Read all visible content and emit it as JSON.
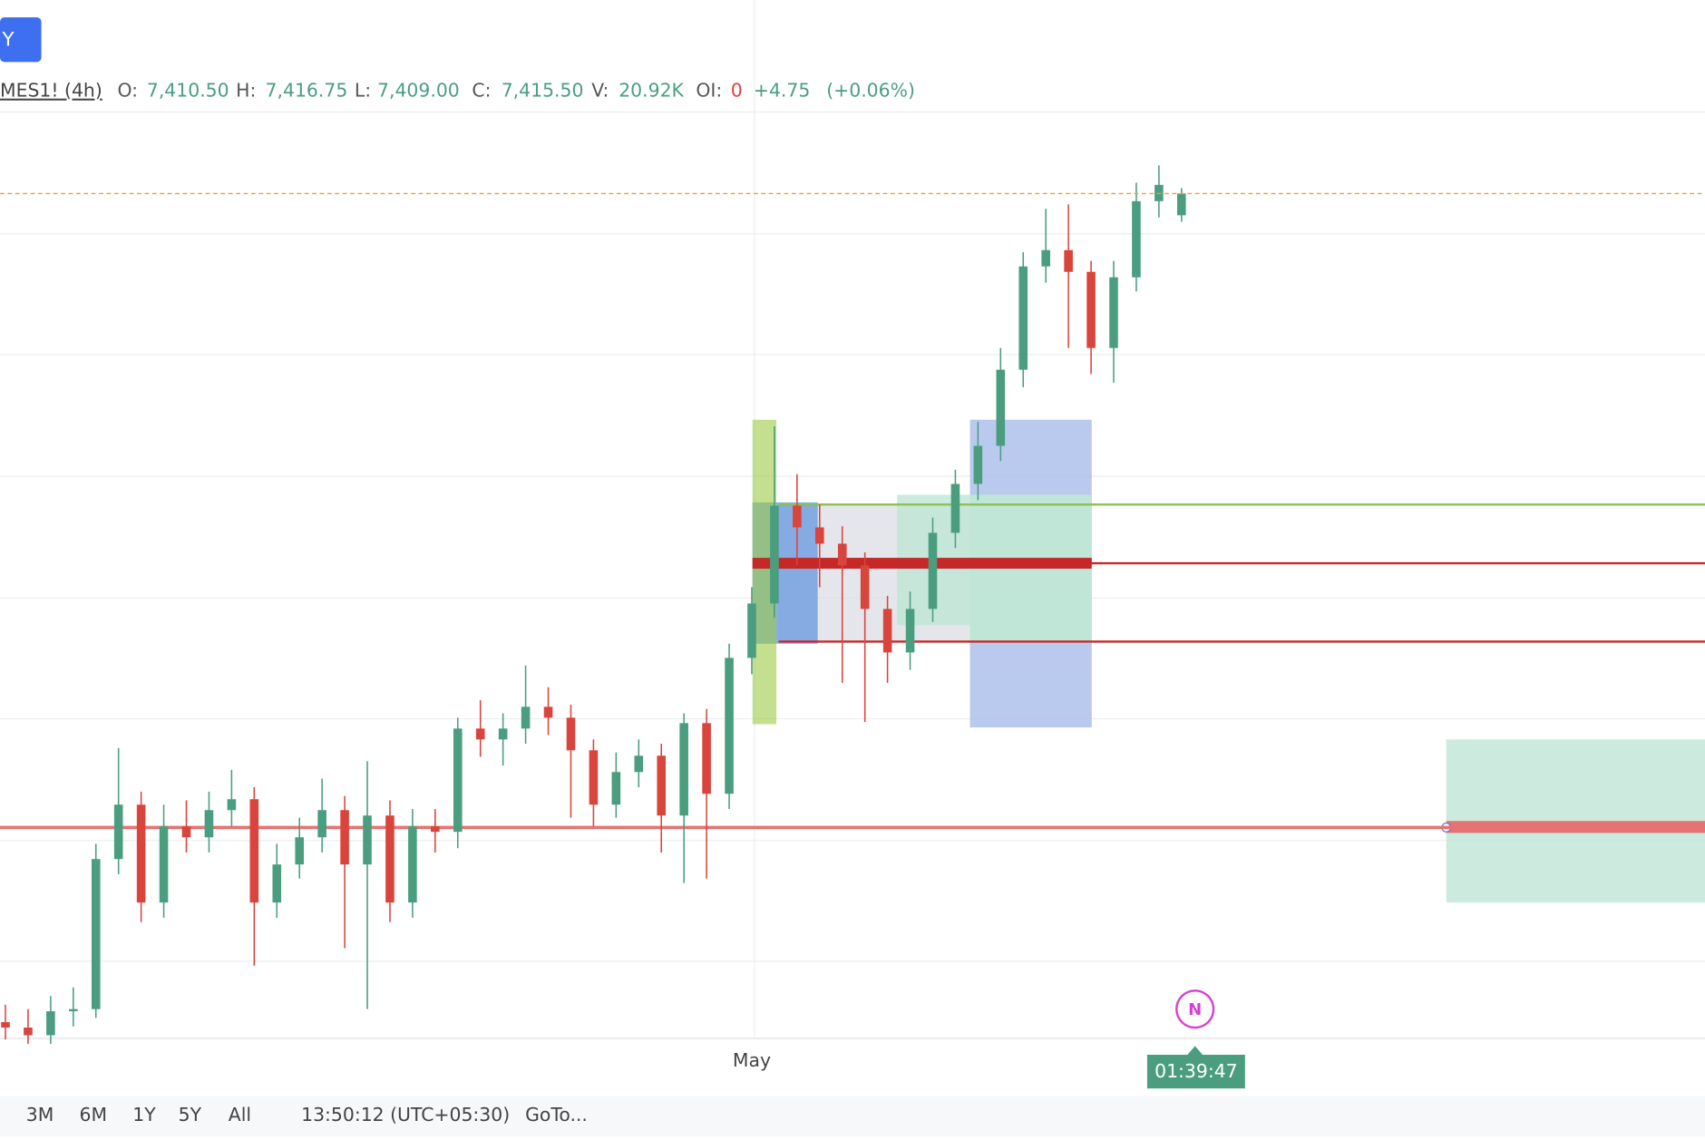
{
  "header": {
    "button": "Y",
    "symbol": "MES1! (4h)",
    "fields": [
      {
        "name": "O:",
        "value": 7410.5,
        "label": "7,410.50"
      },
      {
        "name": "H:",
        "value": 7416.75,
        "label": "7,416.75"
      },
      {
        "name": "L:",
        "value": 7409,
        "label": "7,409.00"
      },
      {
        "name": "C:",
        "value": 7415.5,
        "label": "7,415.50"
      },
      {
        "name": "V:",
        "value": 20920,
        "label": "20.92K"
      },
      {
        "name": "OI:",
        "value": 0,
        "label": "0"
      }
    ],
    "change": {
      "value": 4.75,
      "label": "+4.75"
    },
    "change_pct": {
      "value": 0.06,
      "label": "(+0.06%)"
    }
  },
  "chart_data": {
    "type": "candlestick",
    "ylim": [
      7220,
      7460
    ],
    "up_color": "#4a9e7f",
    "down_color": "#d9453d",
    "categories": [
      null,
      null,
      null,
      null,
      null,
      null,
      null,
      null,
      null,
      null,
      null,
      null,
      null,
      null,
      null,
      null,
      null,
      null,
      null,
      null,
      null,
      null,
      null,
      null,
      null,
      null,
      null,
      null,
      null,
      null,
      null,
      null,
      null,
      "May",
      null,
      null,
      null,
      null,
      null,
      null,
      null,
      null,
      null,
      null,
      null,
      null,
      null,
      null,
      null,
      null,
      null,
      null,
      null
    ],
    "candles": [
      [
        7225,
        7229,
        7221,
        7223.75
      ],
      [
        7223.75,
        7228,
        7220,
        7222
      ],
      [
        7222,
        7231,
        7220,
        7227.5
      ],
      [
        7227.5,
        7233,
        7224,
        7228
      ],
      [
        7228,
        7266,
        7226,
        7262.5
      ],
      [
        7262.5,
        7288,
        7259,
        7275
      ],
      [
        7275,
        7278,
        7248,
        7252.5
      ],
      [
        7252.5,
        7275,
        7249,
        7270
      ],
      [
        7270,
        7276,
        7264,
        7267.5
      ],
      [
        7267.5,
        7278,
        7264,
        7273.75
      ],
      [
        7273.75,
        7283,
        7270,
        7276.25
      ],
      [
        7276.25,
        7279,
        7238,
        7252.5
      ],
      [
        7252.5,
        7266,
        7249,
        7261.25
      ],
      [
        7261.25,
        7272,
        7258,
        7267.5
      ],
      [
        7267.5,
        7281,
        7264,
        7273.75
      ],
      [
        7273.75,
        7277,
        7242,
        7261.25
      ],
      [
        7261.25,
        7285,
        7228,
        7272.5
      ],
      [
        7272.5,
        7276,
        7248,
        7252.5
      ],
      [
        7252.5,
        7274,
        7249,
        7270
      ],
      [
        7270,
        7274,
        7264,
        7268.75
      ],
      [
        7268.75,
        7295,
        7265,
        7292.5
      ],
      [
        7292.5,
        7299,
        7286,
        7290
      ],
      [
        7290,
        7296,
        7284,
        7292.5
      ],
      [
        7292.5,
        7307,
        7289,
        7297.5
      ],
      [
        7297.5,
        7302,
        7291,
        7295
      ],
      [
        7295,
        7298,
        7272,
        7287.5
      ],
      [
        7287.5,
        7290,
        7270,
        7275
      ],
      [
        7275,
        7287,
        7272,
        7282.5
      ],
      [
        7282.5,
        7290,
        7279,
        7286.25
      ],
      [
        7286.25,
        7289,
        7264,
        7272.5
      ],
      [
        7272.5,
        7296,
        7257,
        7293.75
      ],
      [
        7293.75,
        7297,
        7258,
        7277.5
      ],
      [
        7277.5,
        7312,
        7274,
        7308.75
      ],
      [
        7308.75,
        7325,
        7305,
        7321.25
      ],
      [
        7321.25,
        7362,
        7318,
        7343.75
      ],
      [
        7343.75,
        7351,
        7330,
        7338.75
      ],
      [
        7338.75,
        7344,
        7325,
        7335
      ],
      [
        7335,
        7339,
        7303,
        7330
      ],
      [
        7330,
        7333,
        7294,
        7320
      ],
      [
        7320,
        7323,
        7303,
        7310
      ],
      [
        7310,
        7324,
        7306,
        7320
      ],
      [
        7320,
        7341,
        7317,
        7337.5
      ],
      [
        7337.5,
        7352,
        7334,
        7348.75
      ],
      [
        7348.75,
        7363,
        7345,
        7357.5
      ],
      [
        7357.5,
        7380,
        7354,
        7375
      ],
      [
        7375,
        7402,
        7371,
        7398.75
      ],
      [
        7398.75,
        7412,
        7395,
        7402.5
      ],
      [
        7402.5,
        7413,
        7380,
        7397.5
      ],
      [
        7397.5,
        7400,
        7374,
        7380
      ],
      [
        7380,
        7400,
        7372,
        7396.25
      ],
      [
        7396.25,
        7418,
        7393,
        7413.75
      ],
      [
        7413.75,
        7422,
        7410,
        7417.5
      ],
      [
        7410.5,
        7416.75,
        7409,
        7415.5
      ]
    ],
    "levels": [
      {
        "value": 7344,
        "color": "#8bc34a"
      },
      {
        "value": 7330.5,
        "color": "#c62828"
      },
      {
        "value": 7312.5,
        "color": "#c62828"
      },
      {
        "value": 7269.75,
        "color": "#e57373"
      }
    ],
    "last_price_color": "#f0a030",
    "marker": "N",
    "timer": "01:39:47"
  },
  "toolbar": {
    "ranges": [
      "3M",
      "6M",
      "1Y",
      "5Y",
      "All"
    ],
    "time": "13:50:12 (UTC+05:30)",
    "goto": "GoTo..."
  }
}
